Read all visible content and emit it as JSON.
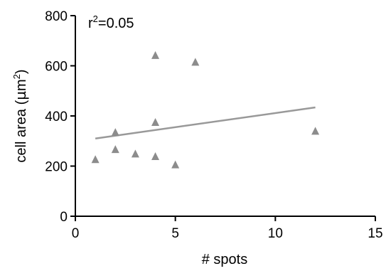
{
  "chart_data": {
    "type": "scatter",
    "xlabel": "# spots",
    "ylabel": "cell area (µm²)",
    "ylabel_parts": {
      "before": "cell area (",
      "mu": "µ",
      "unit": "m",
      "sup": "2",
      "after": ")"
    },
    "annotation": {
      "base": "r",
      "sup": "2",
      "rest": "=0.05"
    },
    "xlim": [
      0,
      15
    ],
    "ylim": [
      0,
      800
    ],
    "xticks": [
      0,
      5,
      10,
      15
    ],
    "yticks": [
      0,
      200,
      400,
      600,
      800
    ],
    "grid": false,
    "marker": "triangle",
    "colors": {
      "marker": "#8c8c8c",
      "fit": "#999999",
      "axis": "#000000"
    },
    "series": [
      {
        "points": [
          {
            "x": 1,
            "y": 225
          },
          {
            "x": 2,
            "y": 333
          },
          {
            "x": 2,
            "y": 265
          },
          {
            "x": 3,
            "y": 247
          },
          {
            "x": 4,
            "y": 640
          },
          {
            "x": 4,
            "y": 373
          },
          {
            "x": 4,
            "y": 237
          },
          {
            "x": 5,
            "y": 204
          },
          {
            "x": 6,
            "y": 613
          },
          {
            "x": 12,
            "y": 338
          }
        ]
      }
    ],
    "fit_line": {
      "x": [
        1,
        12
      ],
      "y": [
        310,
        434
      ]
    }
  }
}
